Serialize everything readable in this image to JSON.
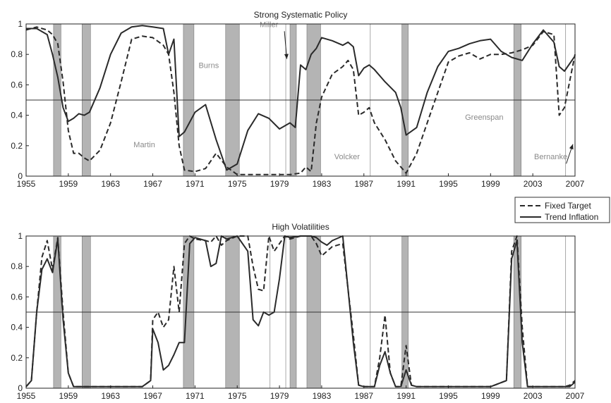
{
  "chart_data": [
    {
      "type": "line",
      "title": "Strong Systematic Policy",
      "xlim": [
        1955,
        2007
      ],
      "ylim": [
        0,
        1
      ],
      "xticks": [
        "1955",
        "1959",
        "1963",
        "1967",
        "1971",
        "1975",
        "1979",
        "1983",
        "1987",
        "1991",
        "1995",
        "1999",
        "2003",
        "2007"
      ],
      "yticks": [
        "0",
        "0.2",
        "0.4",
        "0.6",
        "0.8",
        "1"
      ],
      "reference_line": 0.5,
      "recessions": [
        [
          1957.6,
          1958.3
        ],
        [
          1960.3,
          1961.1
        ],
        [
          1969.9,
          1970.9
        ],
        [
          1973.9,
          1975.2
        ],
        [
          1980.0,
          1980.6
        ],
        [
          1981.6,
          1982.9
        ],
        [
          1990.6,
          1991.2
        ],
        [
          2001.2,
          2001.9
        ]
      ],
      "chair_lines": [
        1978.1,
        1979.6,
        1987.6,
        2006.1
      ],
      "annotations": [
        {
          "text": "Martin",
          "x": 1966.2,
          "y": 0.19
        },
        {
          "text": "Burns",
          "x": 1972.3,
          "y": 0.71
        },
        {
          "text": "Miller",
          "x": 1978.0,
          "y": 0.98,
          "arrow_to": [
            1979.7,
            0.77
          ]
        },
        {
          "text": "Volcker",
          "x": 1985.4,
          "y": 0.11
        },
        {
          "text": "Greenspan",
          "x": 1998.4,
          "y": 0.37
        },
        {
          "text": "Bernanke",
          "x": 2004.7,
          "y": 0.11,
          "arrow_to": [
            2006.8,
            0.21
          ]
        }
      ],
      "series": [
        {
          "name": "Fixed Target",
          "style": "dashed",
          "x": [
            1955,
            1956,
            1957,
            1957.5,
            1958,
            1958.5,
            1959,
            1959.5,
            1960,
            1960.5,
            1961,
            1962,
            1963,
            1964,
            1965,
            1966,
            1967,
            1968,
            1968.5,
            1969,
            1969.5,
            1970,
            1971,
            1972,
            1973,
            1974,
            1975,
            1976,
            1977,
            1978,
            1979,
            1980,
            1981,
            1981.5,
            1982,
            1982.5,
            1983,
            1984,
            1985,
            1985.5,
            1986,
            1986.5,
            1987,
            1987.5,
            1988,
            1989,
            1990,
            1990.5,
            1991,
            1992,
            1993,
            1994,
            1995,
            1996,
            1997,
            1998,
            1999,
            2000,
            2001,
            2002,
            2003,
            2004,
            2005,
            2005.5,
            2006,
            2007
          ],
          "y": [
            0.96,
            0.98,
            0.96,
            0.93,
            0.87,
            0.62,
            0.3,
            0.15,
            0.15,
            0.12,
            0.1,
            0.17,
            0.35,
            0.62,
            0.9,
            0.92,
            0.91,
            0.86,
            0.8,
            0.55,
            0.2,
            0.04,
            0.03,
            0.05,
            0.15,
            0.06,
            0.01,
            0.01,
            0.01,
            0.01,
            0.01,
            0.01,
            0.02,
            0.06,
            0.03,
            0.35,
            0.52,
            0.67,
            0.72,
            0.76,
            0.7,
            0.4,
            0.42,
            0.45,
            0.35,
            0.24,
            0.1,
            0.06,
            0.02,
            0.15,
            0.35,
            0.55,
            0.75,
            0.79,
            0.81,
            0.77,
            0.8,
            0.8,
            0.81,
            0.83,
            0.86,
            0.95,
            0.93,
            0.4,
            0.45,
            0.8
          ]
        },
        {
          "name": "Trend Inflation",
          "style": "solid",
          "x": [
            1955,
            1956,
            1957,
            1957.5,
            1958,
            1958.5,
            1959,
            1959.5,
            1960,
            1960.5,
            1961,
            1962,
            1963,
            1964,
            1965,
            1966,
            1967,
            1968,
            1968.5,
            1969,
            1969.5,
            1970,
            1971,
            1972,
            1973,
            1974,
            1975,
            1976,
            1977,
            1978,
            1979,
            1980,
            1980.5,
            1981,
            1981.5,
            1982,
            1982.5,
            1983,
            1984,
            1985,
            1985.5,
            1986,
            1986.5,
            1987,
            1987.5,
            1988,
            1989,
            1990,
            1990.5,
            1991,
            1992,
            1993,
            1994,
            1995,
            1996,
            1997,
            1998,
            1999,
            2000,
            2001,
            2002,
            2003,
            2004,
            2005,
            2005.5,
            2006,
            2007
          ],
          "y": [
            0.97,
            0.97,
            0.93,
            0.8,
            0.65,
            0.45,
            0.36,
            0.38,
            0.41,
            0.4,
            0.42,
            0.58,
            0.8,
            0.94,
            0.98,
            0.99,
            0.98,
            0.97,
            0.8,
            0.9,
            0.26,
            0.29,
            0.42,
            0.47,
            0.24,
            0.04,
            0.08,
            0.3,
            0.41,
            0.38,
            0.31,
            0.35,
            0.32,
            0.73,
            0.7,
            0.8,
            0.84,
            0.91,
            0.89,
            0.86,
            0.88,
            0.85,
            0.66,
            0.71,
            0.73,
            0.7,
            0.62,
            0.55,
            0.45,
            0.27,
            0.32,
            0.55,
            0.72,
            0.82,
            0.84,
            0.87,
            0.89,
            0.9,
            0.82,
            0.78,
            0.76,
            0.87,
            0.96,
            0.88,
            0.72,
            0.69,
            0.79
          ]
        }
      ]
    },
    {
      "type": "line",
      "title": "High Volatilities",
      "xlim": [
        1955,
        2007
      ],
      "ylim": [
        0,
        1
      ],
      "xticks": [
        "1955",
        "1959",
        "1963",
        "1967",
        "1971",
        "1975",
        "1979",
        "1983",
        "1987",
        "1991",
        "1995",
        "1999",
        "2003",
        "2007"
      ],
      "yticks": [
        "0",
        "0.2",
        "0.4",
        "0.6",
        "0.8",
        "1"
      ],
      "reference_line": 0.5,
      "recessions": [
        [
          1957.6,
          1958.3
        ],
        [
          1960.3,
          1961.1
        ],
        [
          1969.9,
          1970.9
        ],
        [
          1973.9,
          1975.2
        ],
        [
          1980.0,
          1980.6
        ],
        [
          1981.6,
          1982.9
        ],
        [
          1990.6,
          1991.2
        ],
        [
          2001.2,
          2001.9
        ]
      ],
      "chair_lines": [
        1978.1,
        1979.6,
        1987.6,
        2006.1
      ],
      "series": [
        {
          "name": "Fixed Target",
          "style": "dashed",
          "x": [
            1955,
            1955.5,
            1956,
            1956.5,
            1957,
            1957.5,
            1958,
            1958.5,
            1959,
            1959.5,
            1960,
            1961,
            1963,
            1966,
            1966.8,
            1967,
            1967.5,
            1968,
            1968.5,
            1969,
            1969.5,
            1970,
            1970.5,
            1971,
            1972,
            1972.5,
            1973,
            1973.5,
            1974,
            1975,
            1976,
            1976.5,
            1977,
            1977.5,
            1978,
            1978.5,
            1979,
            1979.5,
            1980,
            1981,
            1982,
            1982.5,
            1983,
            1983.5,
            1984,
            1985,
            1986,
            1986.5,
            1987,
            1988,
            1988.5,
            1989,
            1989.5,
            1990,
            1990.5,
            1991,
            1991.5,
            1992,
            1995,
            1999,
            2000.5,
            2001,
            2001.5,
            2002,
            2002.5,
            2003,
            2006,
            2006.5,
            2007
          ],
          "y": [
            0.01,
            0.05,
            0.5,
            0.86,
            0.97,
            0.78,
            0.99,
            0.5,
            0.1,
            0.01,
            0.01,
            0.01,
            0.01,
            0.01,
            0.05,
            0.45,
            0.5,
            0.4,
            0.45,
            0.8,
            0.5,
            0.95,
            1.0,
            0.98,
            0.97,
            0.96,
            1.0,
            0.94,
            0.97,
            1.0,
            1.0,
            0.8,
            0.65,
            0.64,
            1.0,
            0.9,
            0.95,
            1.0,
            0.98,
            1.0,
            1.0,
            0.95,
            0.87,
            0.9,
            0.93,
            0.95,
            0.35,
            0.02,
            0.01,
            0.01,
            0.2,
            0.48,
            0.1,
            0.01,
            0.01,
            0.28,
            0.02,
            0.01,
            0.01,
            0.01,
            0.05,
            0.9,
            1.0,
            0.4,
            0.01,
            0.01,
            0.01,
            0.02,
            0.05
          ]
        },
        {
          "name": "Trend Inflation",
          "style": "solid",
          "x": [
            1955,
            1955.5,
            1956,
            1956.5,
            1957,
            1957.5,
            1958,
            1958.5,
            1959,
            1959.5,
            1960,
            1961,
            1963,
            1966,
            1966.8,
            1967,
            1967.5,
            1968,
            1968.5,
            1969,
            1969.5,
            1970,
            1970.5,
            1971,
            1972,
            1972.5,
            1973,
            1973.5,
            1974,
            1975,
            1976,
            1976.5,
            1977,
            1977.5,
            1978,
            1978.5,
            1979,
            1979.5,
            1980,
            1981,
            1982,
            1982.5,
            1983,
            1983.5,
            1984,
            1985,
            1986,
            1986.5,
            1987,
            1988,
            1988.5,
            1989,
            1989.5,
            1990,
            1990.5,
            1991,
            1991.5,
            1992,
            1995,
            1999,
            2000.5,
            2001,
            2001.5,
            2002,
            2002.5,
            2003,
            2006,
            2006.5,
            2007
          ],
          "y": [
            0.01,
            0.05,
            0.5,
            0.78,
            0.85,
            0.76,
            0.98,
            0.45,
            0.1,
            0.01,
            0.01,
            0.01,
            0.01,
            0.01,
            0.05,
            0.39,
            0.3,
            0.12,
            0.15,
            0.22,
            0.3,
            0.3,
            0.95,
            0.99,
            0.97,
            0.8,
            0.82,
            1.0,
            0.98,
            1.0,
            0.9,
            0.45,
            0.41,
            0.5,
            0.48,
            0.5,
            0.72,
            1.0,
            0.99,
            1.0,
            1.0,
            0.99,
            0.96,
            0.94,
            0.97,
            1.0,
            0.3,
            0.02,
            0.01,
            0.01,
            0.15,
            0.24,
            0.1,
            0.01,
            0.01,
            0.12,
            0.02,
            0.01,
            0.01,
            0.01,
            0.05,
            0.85,
            0.97,
            0.3,
            0.01,
            0.01,
            0.01,
            0.01,
            0.04
          ]
        }
      ]
    }
  ],
  "legend": {
    "entries": [
      {
        "label": "Fixed Target",
        "style": "dashed"
      },
      {
        "label": "Trend Inflation",
        "style": "solid"
      }
    ]
  },
  "colors": {
    "line": "#2a2a2a",
    "recession": "#b4b4b4",
    "chair_line": "#aaaaaa",
    "annotation": "#8a8a8a"
  }
}
